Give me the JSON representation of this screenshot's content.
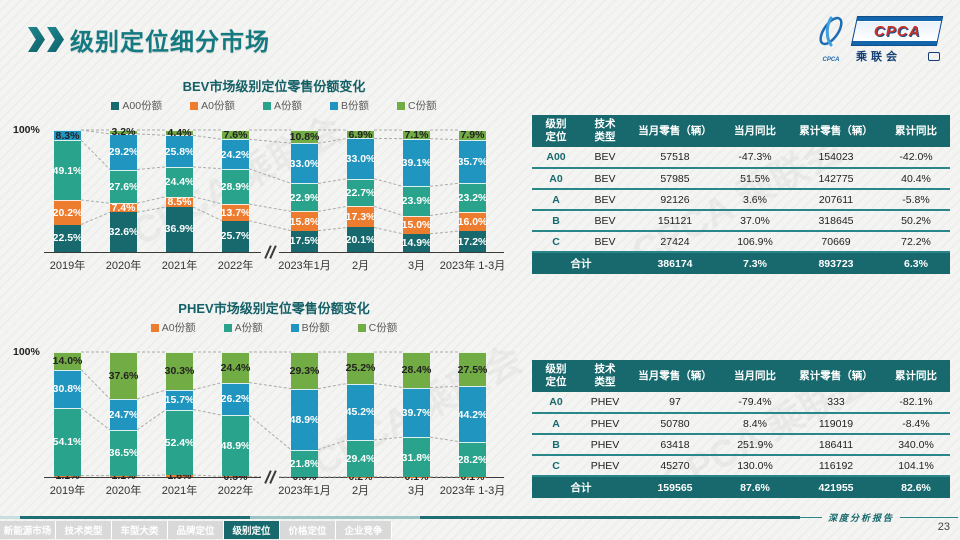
{
  "header": {
    "title": "级别定位细分市场"
  },
  "logo": {
    "cpca": "CPCA",
    "sub": "乘联会",
    "icon_label": "CPCA"
  },
  "colors": {
    "accent": "#17696d",
    "table_line": "#2b8689",
    "a00": "#17696d",
    "a0": "#ee7c2e",
    "a": "#29a38b",
    "b": "#2095bf",
    "c": "#72ac44"
  },
  "chart_data": [
    {
      "type": "bar",
      "stacked": true,
      "title": "BEV市场级别定位零售份额变化",
      "y_top_label": "100%",
      "unit": "%",
      "ylim": [
        0,
        100
      ],
      "legend_position": "top",
      "axis_break_after_index": 3,
      "categories": [
        "2019年",
        "2020年",
        "2021年",
        "2022年",
        "2023年1月",
        "2月",
        "3月",
        "2023年 1-3月"
      ],
      "series": [
        {
          "name": "A00份额",
          "color": "#17696d",
          "values": [
            22.5,
            32.6,
            36.9,
            25.7,
            17.5,
            20.1,
            14.9,
            17.2
          ]
        },
        {
          "name": "A0份额",
          "color": "#ee7c2e",
          "values": [
            20.2,
            7.4,
            8.5,
            13.7,
            15.8,
            17.3,
            15.0,
            16.0
          ]
        },
        {
          "name": "A份额",
          "color": "#29a38b",
          "values": [
            49.1,
            27.6,
            24.4,
            28.9,
            22.9,
            22.7,
            23.9,
            23.2
          ]
        },
        {
          "name": "B份额",
          "color": "#2095bf",
          "values": [
            8.3,
            29.2,
            25.8,
            24.2,
            33.0,
            33.0,
            39.1,
            35.7
          ]
        },
        {
          "name": "C份额",
          "color": "#72ac44",
          "values": [
            0,
            3.2,
            4.4,
            7.6,
            10.8,
            6.9,
            7.1,
            7.9
          ]
        }
      ]
    },
    {
      "type": "bar",
      "stacked": true,
      "title": "PHEV市场级别定位零售份额变化",
      "y_top_label": "100%",
      "unit": "%",
      "ylim": [
        0,
        100
      ],
      "legend_position": "top",
      "axis_break_after_index": 3,
      "categories": [
        "2019年",
        "2020年",
        "2021年",
        "2022年",
        "2023年1月",
        "2月",
        "3月",
        "2023年 1-3月"
      ],
      "series": [
        {
          "name": "A0份额",
          "color": "#ee7c2e",
          "values": [
            1.1,
            1.1,
            1.6,
            0.5,
            0.0,
            0.2,
            0.1,
            0.1
          ],
          "label_color": "#222",
          "show_zero": true
        },
        {
          "name": "A份额",
          "color": "#29a38b",
          "values": [
            54.1,
            36.5,
            52.4,
            48.9,
            21.8,
            29.4,
            31.8,
            28.2
          ]
        },
        {
          "name": "B份额",
          "color": "#2095bf",
          "values": [
            30.8,
            24.7,
            15.7,
            26.2,
            48.9,
            45.2,
            39.7,
            44.2
          ]
        },
        {
          "name": "C份额",
          "color": "#72ac44",
          "values": [
            14.0,
            37.6,
            30.3,
            24.4,
            29.3,
            25.2,
            28.4,
            27.5
          ]
        }
      ]
    }
  ],
  "tables": [
    {
      "headers": [
        "级别\n定位",
        "技术\n类型",
        "当月零售（辆）",
        "当月同比",
        "累计零售（辆）",
        "累计同比"
      ],
      "rows": [
        [
          "A00",
          "BEV",
          "57518",
          "-47.3%",
          "154023",
          "-42.0%"
        ],
        [
          "A0",
          "BEV",
          "57985",
          "51.5%",
          "142775",
          "40.4%"
        ],
        [
          "A",
          "BEV",
          "92126",
          "3.6%",
          "207611",
          "-5.8%"
        ],
        [
          "B",
          "BEV",
          "151121",
          "37.0%",
          "318645",
          "50.2%"
        ],
        [
          "C",
          "BEV",
          "27424",
          "106.9%",
          "70669",
          "72.2%"
        ]
      ],
      "total": [
        "合计",
        "",
        "386174",
        "7.3%",
        "893723",
        "6.3%"
      ]
    },
    {
      "headers": [
        "级别\n定位",
        "技术\n类型",
        "当月零售（辆）",
        "当月同比",
        "累计零售（辆）",
        "累计同比"
      ],
      "rows": [
        [
          "A0",
          "PHEV",
          "97",
          "-79.4%",
          "333",
          "-82.1%"
        ],
        [
          "A",
          "PHEV",
          "50780",
          "8.4%",
          "119019",
          "-8.4%"
        ],
        [
          "B",
          "PHEV",
          "63418",
          "251.9%",
          "186411",
          "340.0%"
        ],
        [
          "C",
          "PHEV",
          "45270",
          "130.0%",
          "116192",
          "104.1%"
        ]
      ],
      "total": [
        "合计",
        "",
        "159565",
        "87.6%",
        "421955",
        "82.6%"
      ]
    }
  ],
  "footer": {
    "tabs": [
      "新能源市场",
      "技术类型",
      "车型大类",
      "品牌定位",
      "级别定位",
      "价格定位",
      "企业竞争"
    ],
    "active_tab": "级别定位",
    "report_label": "深度分析报告",
    "page_number": "23"
  },
  "watermark": "CPCA 乘联会"
}
